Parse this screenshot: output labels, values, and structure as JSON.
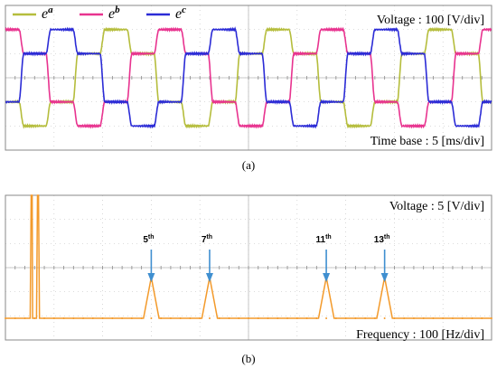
{
  "chart_data": [
    {
      "type": "line",
      "panel": "(a)",
      "annotation": "Voltage : 100 [V/div]",
      "x_annotation": "Time base : 5 [ms/div]",
      "x_unit": "ms",
      "xlim": [
        0,
        50
      ],
      "y_unit": "V",
      "ylim": [
        -300,
        300
      ],
      "grid": true,
      "legend": {
        "placement": "top-left"
      },
      "series": [
        {
          "name": "e",
          "superscript": "a",
          "color": "#b5bd3c",
          "phase_deg": 0
        },
        {
          "name": "e",
          "superscript": "b",
          "color": "#e8338f",
          "phase_deg": -120
        },
        {
          "name": "e",
          "superscript": "c",
          "color": "#2b2bd6",
          "phase_deg": 120
        }
      ],
      "waveform": {
        "shape": "six-step",
        "period_ms": 16.67,
        "levels_v": [
          -200,
          -100,
          0,
          100,
          200
        ]
      }
    },
    {
      "type": "line",
      "panel": "(b)",
      "annotation": "Voltage : 5 [V/div]",
      "x_annotation": "Frequency : 100 [Hz/div]",
      "x_unit": "Hz",
      "xlim": [
        0,
        1000
      ],
      "y_unit": "V",
      "ylim": [
        -15,
        15
      ],
      "grid": true,
      "color": "#f39a2b",
      "fundamental": {
        "x": 60,
        "note": "clipped off-scale"
      },
      "peaks": [
        {
          "label": "5",
          "sup": "th",
          "x": 300,
          "y": -2
        },
        {
          "label": "7",
          "sup": "th",
          "x": 420,
          "y": -2
        },
        {
          "label": "11",
          "sup": "th",
          "x": 660,
          "y": -2
        },
        {
          "label": "13",
          "sup": "th",
          "x": 780,
          "y": -2
        }
      ],
      "baseline": -10.5
    }
  ]
}
